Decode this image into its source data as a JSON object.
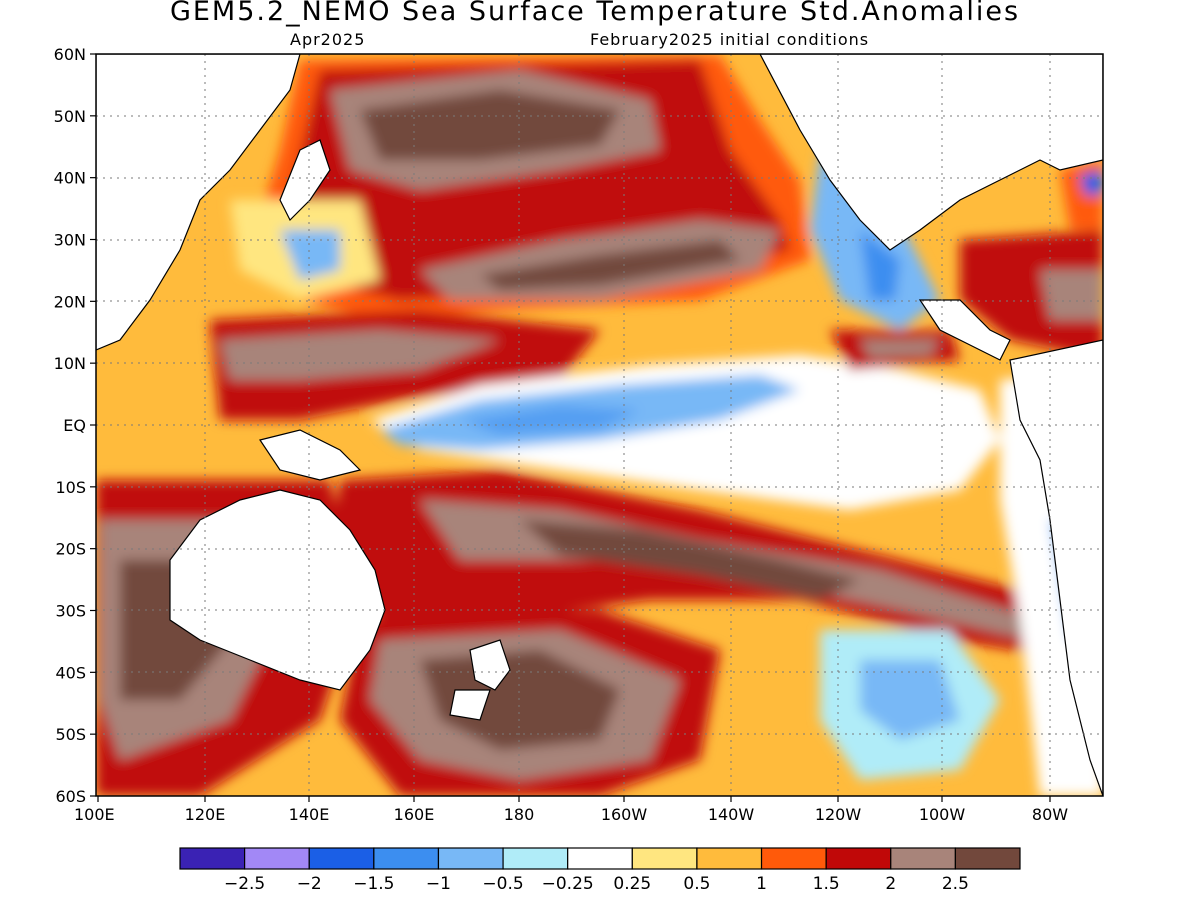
{
  "header": {
    "title": "GEM5.2_NEMO Sea Surface Temperature Std.Anomalies",
    "target_month": "Apr2025",
    "initial_conditions": "February2025 initial conditions"
  },
  "axes": {
    "lat_labels": [
      "60N",
      "50N",
      "40N",
      "30N",
      "20N",
      "10N",
      "EQ",
      "10S",
      "20S",
      "30S",
      "40S",
      "50S",
      "60S"
    ],
    "lon_labels": [
      "100E",
      "120E",
      "140E",
      "160E",
      "180",
      "160W",
      "140W",
      "120W",
      "100W",
      "80W"
    ]
  },
  "colorbar": {
    "colors": [
      "#3a22b4",
      "#a288f6",
      "#1b5fe6",
      "#3c8ef0",
      "#78b8f6",
      "#b0ecf8",
      "#ffffff",
      "#ffe680",
      "#ffbb3c",
      "#ff5a0a",
      "#c00808",
      "#a8847a",
      "#72483c"
    ],
    "labels": [
      "−2.5",
      "−2",
      "−1.5",
      "−1",
      "−0.5",
      "−0.25",
      "0.25",
      "0.5",
      "1",
      "1.5",
      "2",
      "2.5"
    ]
  }
}
